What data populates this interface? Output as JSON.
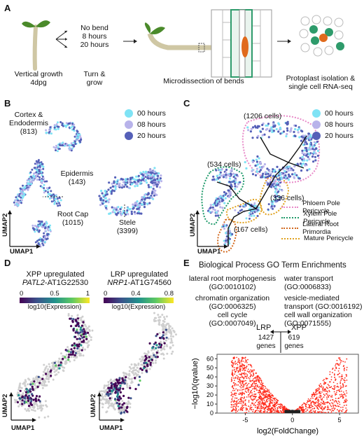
{
  "panels": {
    "a": {
      "letter": "A",
      "vertical_growth": "Vertical growth",
      "age": "4dpg",
      "conditions": [
        "No bend",
        "8 hours",
        "20 hours"
      ],
      "turn_grow": [
        "Turn &",
        "grow"
      ],
      "microdissection": "Microdissection of bends",
      "protoplast": [
        "Protoplast isolation &",
        "single cell RNA-seq"
      ]
    },
    "b": {
      "letter": "B",
      "clusters": [
        {
          "name": [
            "Cortex &",
            "Endodermis"
          ],
          "cells": "(813)"
        },
        {
          "name": [
            "Epidermis"
          ],
          "cells": "(143)"
        },
        {
          "name": [
            "Root Cap"
          ],
          "cells": "(1015)"
        },
        {
          "name": [
            "Stele"
          ],
          "cells": "(3399)"
        }
      ],
      "legend": [
        "00 hours",
        "08 hours",
        "20 hours"
      ],
      "umap1": "UMAP1",
      "umap2": "UMAP2"
    },
    "c": {
      "letter": "C",
      "cell_counts": [
        "(1206 cells)",
        "(534 cells)",
        "(336 cells)",
        "(167 cells)"
      ],
      "legend": [
        "00 hours",
        "08 hours",
        "20 hours"
      ],
      "lineage": [
        "Phloem Pole Pericycle",
        "Xylem Pole Pericycle",
        "Lateral Root Primordia",
        "Mature Pericycle"
      ],
      "umap1": "UMAP1",
      "umap2": "UMAP2"
    },
    "d": {
      "letter": "D",
      "left": {
        "title": "XPP upregulated",
        "gene_italic": "PATL2",
        "gene_id": "-AT1G22530",
        "ticks": [
          "0",
          "0.5",
          "1"
        ],
        "scale_label": "log10(Expression)"
      },
      "right": {
        "title": "LRP upregulated",
        "gene_italic": "NRP1",
        "gene_id": "-AT1G74560",
        "ticks": [
          "0",
          "0.4",
          "0.8"
        ],
        "scale_label": "log10(Expression)"
      },
      "umap1": "UMAP1",
      "umap2": "UMAP2"
    },
    "e": {
      "letter": "E",
      "title": "Biological Process GO Term Enrichments",
      "go_left": [
        {
          "term": "lateral root morphogenesis",
          "id": "(GO:0010102)"
        },
        {
          "term": "chromatin organization",
          "id": "(GO:0006325)"
        },
        {
          "term": "cell cycle",
          "id": "(GO:0007049)"
        }
      ],
      "go_right": [
        {
          "term": "water transport",
          "id": "(GO:0006833)"
        },
        {
          "term": "vesicle-mediated",
          "id": "transport (GO:0016192)"
        },
        {
          "term": "cell wall organization",
          "id": "(GO:0071555)"
        }
      ],
      "lrp": "LRP",
      "xpp": "XPP",
      "lrp_genes": [
        "1427",
        "genes"
      ],
      "xpp_genes": [
        "619",
        "genes"
      ]
    }
  },
  "colors": {
    "h00": "#7fe3f5",
    "h08": "#b8b3ea",
    "h20": "#5560b8",
    "phloem": "#e889c8",
    "xylem": "#1f9a6a",
    "lrp_line": "#d2691e",
    "mature": "#e0a21f",
    "volcano": "#ff2a1a",
    "plant_green": "#4a8a2a",
    "tissue_orange": "#e06a1c",
    "cell_green": "#2e9b6b"
  },
  "chart_data": {
    "type": "scatter",
    "title": "",
    "xlabel": "log2(FoldChange)",
    "ylabel": "-log10(qvalue)",
    "xlim": [
      -8,
      7
    ],
    "ylim": [
      0,
      65
    ],
    "xticks": [
      -5,
      0,
      5
    ],
    "yticks": [
      0,
      10,
      20,
      30,
      40,
      50,
      60
    ],
    "series": [
      {
        "name": "LRP",
        "genes": 1427
      },
      {
        "name": "XPP",
        "genes": 619
      }
    ]
  }
}
